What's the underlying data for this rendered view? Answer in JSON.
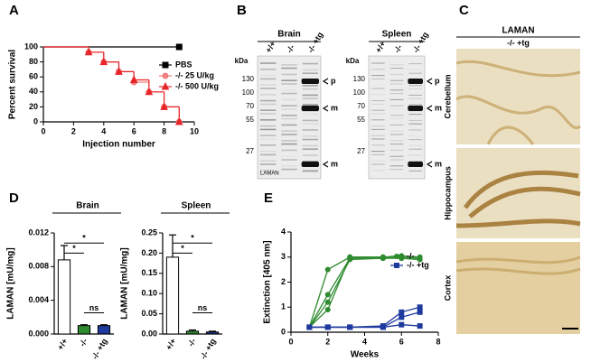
{
  "chart_data": [
    {
      "type": "survival",
      "panel": "A",
      "xlabel": "Injection number",
      "ylabel": "Percent survival",
      "xlim": [
        0,
        10
      ],
      "xticks": [
        0,
        2,
        4,
        6,
        8,
        10
      ],
      "ylim": [
        0,
        100
      ],
      "yticks": [
        0,
        20,
        40,
        60,
        80,
        100
      ],
      "series": [
        {
          "name": "PBS",
          "color": "#000000",
          "marker": "square",
          "x": [
            0,
            9
          ],
          "values": [
            100,
            100
          ]
        },
        {
          "name": "-/- 25 U/kg",
          "color": "#f08080",
          "marker": "circle",
          "x": [
            0,
            3,
            4,
            5,
            6,
            7,
            8,
            9
          ],
          "values": [
            100,
            93,
            80,
            67,
            53,
            40,
            20,
            0
          ]
        },
        {
          "name": "-/- 500 U/kg",
          "color": "#e8262a",
          "marker": "triangle",
          "x": [
            0,
            3,
            4,
            5,
            6,
            7,
            8,
            9
          ],
          "values": [
            100,
            93,
            80,
            67,
            56,
            40,
            20,
            0
          ]
        }
      ]
    },
    {
      "type": "bar",
      "panel": "D",
      "title": "Brain",
      "ylabel": "LAMAN [mU/mg]",
      "categories": [
        "+/+",
        "-/-",
        "-/- +tg"
      ],
      "values": [
        0.0088,
        0.001,
        0.001
      ],
      "errors": [
        0.0017,
        0.0001,
        0.0001
      ],
      "colors": [
        "#ffffff",
        "#2e8b2e",
        "#1f3a9e"
      ],
      "ylim": [
        0,
        0.012
      ],
      "yticks": [
        {
          "value": 0,
          "label": "0.000"
        },
        0.004,
        0.008,
        0.012
      ],
      "annotations": [
        "*",
        "*",
        "ns"
      ]
    },
    {
      "type": "bar",
      "title": "Spleen",
      "ylabel": "LAMAN [mU/mg]",
      "categories": [
        "+/+",
        "-/-",
        "-/- +tg"
      ],
      "values": [
        0.19,
        0.007,
        0.005
      ],
      "errors": [
        0.055,
        0.003,
        0.002
      ],
      "colors": [
        "#ffffff",
        "#2e8b2e",
        "#1f3a9e"
      ],
      "ylim": [
        0,
        0.25
      ],
      "yticks": [
        {
          "value": 0,
          "label": "0.00"
        },
        0.05,
        {
          "value": 0.1,
          "label": "0.10"
        },
        0.15,
        {
          "value": 0.2,
          "label": "0.20"
        },
        0.25
      ],
      "annotations": [
        "*",
        "*",
        "ns"
      ]
    },
    {
      "type": "line",
      "panel": "E",
      "xlabel": "Weeks",
      "ylabel": "Extinction [405 nm]",
      "xlim": [
        0,
        8
      ],
      "xticks": [
        0,
        2,
        4,
        6,
        8
      ],
      "ylim": [
        0,
        4
      ],
      "yticks": [
        0,
        1,
        2,
        3,
        4
      ],
      "x": [
        1,
        2,
        3.2,
        5,
        6,
        7
      ],
      "series": [
        {
          "name": "-/-",
          "color": "#2e8b2e",
          "marker": "circle",
          "lines": [
            [
              0.2,
              2.5,
              3.0,
              3.0,
              3.05,
              3.0
            ],
            [
              0.2,
              1.5,
              2.95,
              2.95,
              3.0,
              2.95
            ],
            [
              0.2,
              1.2,
              2.9,
              2.95,
              2.95,
              2.9
            ],
            [
              0.2,
              0.9,
              3.0,
              3.0,
              2.95,
              2.9
            ]
          ]
        },
        {
          "name": "-/- +tg",
          "color": "#1f3a9e",
          "marker": "square",
          "lines": [
            [
              0.2,
              0.2,
              0.2,
              0.25,
              0.8,
              1.0
            ],
            [
              0.2,
              0.2,
              0.2,
              0.2,
              0.6,
              0.8
            ],
            [
              0.2,
              0.2,
              0.2,
              0.2,
              0.3,
              0.25
            ]
          ]
        }
      ]
    }
  ],
  "blots": [
    {
      "panel": "B",
      "title": "Brain",
      "kda": "kDa",
      "lanes": [
        "+/+",
        "-/-",
        "-/- +tg"
      ],
      "markers": [
        130,
        100,
        70,
        55,
        27
      ],
      "bands": [
        "p",
        "m",
        "m"
      ],
      "footer": "LAMAN"
    },
    {
      "title": "Spleen",
      "kda": "kDa",
      "lanes": [
        "+/+",
        "-/-",
        "-/- +tg"
      ],
      "markers": [
        130,
        100,
        70,
        55,
        27
      ],
      "bands": [
        "p",
        "m",
        "m"
      ]
    }
  ],
  "histology": {
    "panel": "C",
    "title": "LAMAN",
    "subtitle": "-/- +tg",
    "regions": [
      "Cerebellum",
      "Hippocampus",
      "Cortex"
    ]
  }
}
